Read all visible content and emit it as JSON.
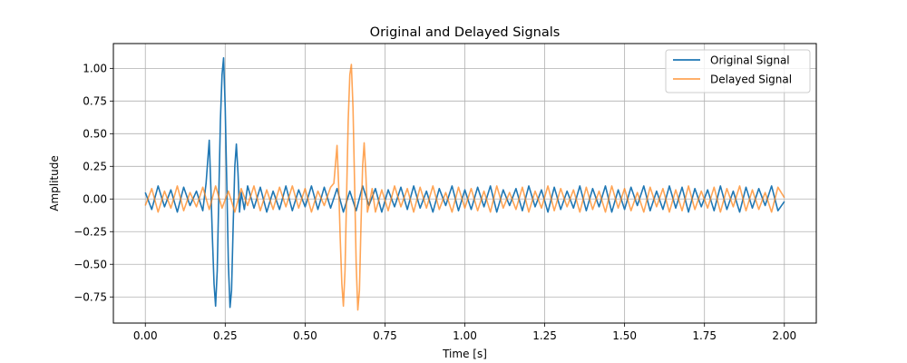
{
  "chart_data": {
    "type": "line",
    "title": "Original and Delayed Signals",
    "xlabel": "Time [s]",
    "ylabel": "Amplitude",
    "xlim": [
      -0.1,
      2.1
    ],
    "ylim": [
      -0.95,
      1.19
    ],
    "xticks": [
      0.0,
      0.25,
      0.5,
      0.75,
      1.0,
      1.25,
      1.5,
      1.75,
      2.0
    ],
    "xtick_labels": [
      "0.00",
      "0.25",
      "0.50",
      "0.75",
      "1.00",
      "1.25",
      "1.50",
      "1.75",
      "2.00"
    ],
    "yticks": [
      -0.75,
      -0.5,
      -0.25,
      0.0,
      0.25,
      0.5,
      0.75,
      1.0
    ],
    "ytick_labels": [
      "−0.75",
      "−0.50",
      "−0.25",
      "0.00",
      "0.25",
      "0.50",
      "0.75",
      "1.00"
    ],
    "grid": true,
    "legend": "top-right",
    "series": [
      {
        "name": "Original Signal",
        "color": "#1f77b4",
        "opacity": 1.0,
        "x": [
          0.0,
          0.02,
          0.04,
          0.06,
          0.08,
          0.1,
          0.12,
          0.14,
          0.16,
          0.18,
          0.19,
          0.2,
          0.205,
          0.21,
          0.215,
          0.22,
          0.225,
          0.23,
          0.235,
          0.24,
          0.245,
          0.25,
          0.255,
          0.26,
          0.265,
          0.27,
          0.275,
          0.28,
          0.285,
          0.29,
          0.295,
          0.3,
          0.31,
          0.32,
          0.34,
          0.36,
          0.38,
          0.4,
          0.42,
          0.44,
          0.46,
          0.48,
          0.5,
          0.52,
          0.54,
          0.56,
          0.58,
          0.6,
          0.62,
          0.64,
          0.66,
          0.68,
          0.7,
          0.72,
          0.74,
          0.76,
          0.78,
          0.8,
          0.82,
          0.84,
          0.86,
          0.88,
          0.9,
          0.92,
          0.94,
          0.96,
          0.98,
          1.0,
          1.02,
          1.04,
          1.06,
          1.08,
          1.1,
          1.12,
          1.14,
          1.16,
          1.18,
          1.2,
          1.22,
          1.24,
          1.26,
          1.28,
          1.3,
          1.32,
          1.34,
          1.36,
          1.38,
          1.4,
          1.42,
          1.44,
          1.46,
          1.48,
          1.5,
          1.52,
          1.54,
          1.56,
          1.58,
          1.6,
          1.62,
          1.64,
          1.66,
          1.68,
          1.7,
          1.72,
          1.74,
          1.76,
          1.78,
          1.8,
          1.82,
          1.84,
          1.86,
          1.88,
          1.9,
          1.92,
          1.94,
          1.96,
          1.98,
          2.0
        ],
        "y": [
          0.05,
          -0.08,
          0.1,
          -0.06,
          0.07,
          -0.1,
          0.09,
          -0.05,
          0.06,
          -0.09,
          0.12,
          0.45,
          0.1,
          -0.3,
          -0.65,
          -0.82,
          -0.55,
          0.05,
          0.6,
          0.95,
          1.08,
          0.7,
          0.1,
          -0.5,
          -0.83,
          -0.7,
          -0.2,
          0.25,
          0.42,
          0.2,
          -0.1,
          0.05,
          -0.08,
          0.1,
          -0.07,
          0.09,
          -0.1,
          0.06,
          -0.08,
          0.1,
          -0.09,
          0.07,
          -0.06,
          0.1,
          -0.08,
          0.09,
          -0.07,
          0.08,
          -0.1,
          0.06,
          -0.09,
          0.1,
          -0.05,
          0.08,
          -0.1,
          0.07,
          -0.06,
          0.09,
          -0.08,
          0.1,
          -0.07,
          0.06,
          -0.1,
          0.08,
          -0.05,
          0.1,
          -0.09,
          0.07,
          -0.08,
          0.09,
          -0.06,
          0.1,
          -0.1,
          0.07,
          -0.05,
          0.08,
          -0.09,
          0.1,
          -0.06,
          0.07,
          -0.1,
          0.09,
          -0.08,
          0.06,
          -0.07,
          0.1,
          -0.09,
          0.08,
          -0.06,
          0.1,
          -0.1,
          0.07,
          -0.08,
          0.09,
          -0.05,
          0.1,
          -0.09,
          0.06,
          -0.08,
          0.1,
          -0.07,
          0.09,
          -0.1,
          0.08,
          -0.06,
          0.07,
          -0.09,
          0.1,
          -0.08,
          0.06,
          -0.1,
          0.09,
          -0.07,
          0.08,
          -0.05,
          0.1,
          -0.09,
          -0.02
        ]
      },
      {
        "name": "Delayed Signal",
        "color": "#ff7f0e",
        "opacity": 0.7,
        "x": [
          0.0,
          0.02,
          0.04,
          0.06,
          0.08,
          0.1,
          0.12,
          0.14,
          0.16,
          0.18,
          0.2,
          0.22,
          0.24,
          0.26,
          0.28,
          0.3,
          0.32,
          0.34,
          0.36,
          0.38,
          0.4,
          0.42,
          0.44,
          0.46,
          0.48,
          0.5,
          0.52,
          0.54,
          0.56,
          0.58,
          0.59,
          0.6,
          0.605,
          0.61,
          0.615,
          0.62,
          0.625,
          0.63,
          0.635,
          0.64,
          0.645,
          0.65,
          0.655,
          0.66,
          0.665,
          0.67,
          0.675,
          0.68,
          0.685,
          0.69,
          0.695,
          0.7,
          0.71,
          0.72,
          0.74,
          0.76,
          0.78,
          0.8,
          0.82,
          0.84,
          0.86,
          0.88,
          0.9,
          0.92,
          0.94,
          0.96,
          0.98,
          1.0,
          1.02,
          1.04,
          1.06,
          1.08,
          1.1,
          1.12,
          1.14,
          1.16,
          1.18,
          1.2,
          1.22,
          1.24,
          1.26,
          1.28,
          1.3,
          1.32,
          1.34,
          1.36,
          1.38,
          1.4,
          1.42,
          1.44,
          1.46,
          1.48,
          1.5,
          1.52,
          1.54,
          1.56,
          1.58,
          1.6,
          1.62,
          1.64,
          1.66,
          1.68,
          1.7,
          1.72,
          1.74,
          1.76,
          1.78,
          1.8,
          1.82,
          1.84,
          1.86,
          1.88,
          1.9,
          1.92,
          1.94,
          1.96,
          1.98,
          2.0
        ],
        "y": [
          -0.05,
          0.08,
          -0.1,
          0.06,
          -0.07,
          0.1,
          -0.09,
          0.05,
          -0.06,
          0.09,
          -0.08,
          0.1,
          -0.07,
          0.06,
          -0.1,
          0.08,
          -0.05,
          0.1,
          -0.09,
          0.07,
          -0.08,
          0.09,
          -0.06,
          0.1,
          -0.07,
          0.08,
          -0.1,
          0.06,
          -0.05,
          0.09,
          0.12,
          0.41,
          0.1,
          -0.3,
          -0.65,
          -0.82,
          -0.55,
          0.05,
          0.6,
          0.95,
          1.03,
          0.7,
          0.1,
          -0.5,
          -0.85,
          -0.7,
          -0.2,
          0.25,
          0.43,
          0.2,
          -0.1,
          -0.05,
          0.08,
          -0.1,
          0.07,
          -0.09,
          0.1,
          -0.06,
          0.08,
          -0.1,
          0.09,
          -0.07,
          0.1,
          -0.08,
          0.05,
          -0.1,
          0.09,
          -0.07,
          0.08,
          -0.09,
          0.06,
          -0.1,
          0.1,
          -0.07,
          0.05,
          -0.08,
          0.09,
          -0.1,
          0.06,
          -0.07,
          0.1,
          -0.09,
          0.08,
          -0.06,
          0.07,
          -0.1,
          0.09,
          -0.08,
          0.06,
          -0.1,
          0.1,
          -0.07,
          0.08,
          -0.09,
          0.05,
          -0.1,
          0.09,
          -0.06,
          0.08,
          -0.1,
          0.07,
          -0.09,
          0.1,
          -0.08,
          0.06,
          -0.07,
          0.09,
          -0.1,
          0.08,
          -0.06,
          0.1,
          -0.09,
          0.07,
          -0.08,
          0.05,
          -0.1,
          0.09,
          0.01
        ]
      }
    ]
  }
}
